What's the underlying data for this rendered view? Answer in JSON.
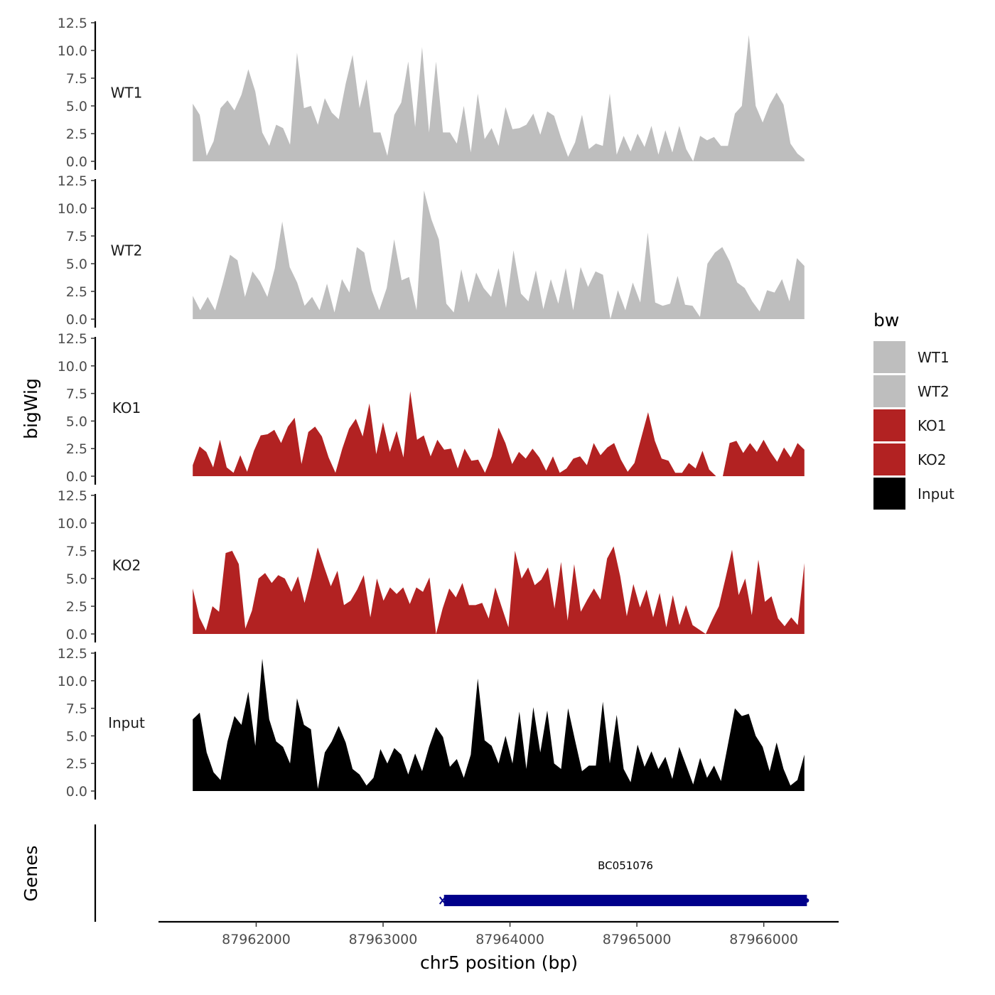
{
  "chart_data": {
    "type": "area",
    "ylabel": "bigWig",
    "xlabel": "chr5 position (bp)",
    "x_range": [
      87961500,
      87966320
    ],
    "xlim": [
      87961230,
      87966590
    ],
    "ylim": [
      0,
      12.5
    ],
    "y_ticks": [
      "0.0",
      "2.5",
      "5.0",
      "7.5",
      "10.0",
      "12.5"
    ],
    "x_ticks": [
      {
        "value": 87962000,
        "label": "87962000"
      },
      {
        "value": 87963000,
        "label": "87963000"
      },
      {
        "value": 87964000,
        "label": "87964000"
      },
      {
        "value": 87965000,
        "label": "87965000"
      },
      {
        "value": 87966000,
        "label": "87966000"
      }
    ],
    "grid": false,
    "legend": {
      "title": "bw",
      "placement": "right",
      "items": [
        {
          "label": "WT1",
          "color": "#bebebe"
        },
        {
          "label": "WT2",
          "color": "#bebebe"
        },
        {
          "label": "KO1",
          "color": "#b22222"
        },
        {
          "label": "KO2",
          "color": "#b22222"
        },
        {
          "label": "Input",
          "color": "#000000"
        }
      ]
    },
    "series": [
      {
        "name": "WT1",
        "color": "#bebebe",
        "values": [
          5.2,
          4.2,
          0.5,
          1.8,
          4.8,
          5.5,
          4.6,
          6.0,
          8.3,
          6.3,
          2.6,
          1.4,
          3.3,
          3.0,
          1.5,
          9.8,
          4.8,
          5.0,
          3.3,
          5.7,
          4.4,
          3.8,
          7.0,
          9.6,
          4.8,
          7.4,
          2.6,
          2.6,
          0.5,
          4.2,
          5.3,
          9.0,
          3.1,
          10.3,
          2.6,
          9.0,
          2.6,
          2.6,
          1.6,
          5.0,
          0.8,
          6.1,
          2.0,
          3.0,
          1.4,
          4.9,
          2.9,
          3.0,
          3.3,
          4.3,
          2.4,
          4.5,
          4.1,
          2.1,
          0.4,
          1.7,
          4.2,
          1.1,
          1.6,
          1.4,
          6.1,
          0.6,
          2.3,
          0.9,
          2.5,
          1.3,
          3.2,
          0.6,
          2.8,
          0.8,
          3.2,
          1.1,
          0.0,
          2.3,
          1.9,
          2.2,
          1.4,
          1.4,
          4.3,
          5.0,
          11.4,
          5.0,
          3.5,
          5.1,
          6.2,
          5.1,
          1.6,
          0.7,
          0.2
        ]
      },
      {
        "name": "WT2",
        "color": "#bebebe",
        "values": [
          2.1,
          0.8,
          2.0,
          0.8,
          3.2,
          5.8,
          5.3,
          2.0,
          4.3,
          3.4,
          2.0,
          4.6,
          8.8,
          4.7,
          3.3,
          1.2,
          2.0,
          0.8,
          3.2,
          0.6,
          3.6,
          2.4,
          6.5,
          6.0,
          2.6,
          0.8,
          2.8,
          7.2,
          3.5,
          3.8,
          0.8,
          11.6,
          9.0,
          7.2,
          1.4,
          0.6,
          4.5,
          1.5,
          4.2,
          2.8,
          2.0,
          4.6,
          1.0,
          6.2,
          2.3,
          1.6,
          4.4,
          0.9,
          3.6,
          1.4,
          4.6,
          0.8,
          4.7,
          2.9,
          4.3,
          4.0,
          0.0,
          2.6,
          0.8,
          3.3,
          1.5,
          7.8,
          1.5,
          1.2,
          1.4,
          3.9,
          1.3,
          1.2,
          0.2,
          5.0,
          6.0,
          6.5,
          5.2,
          3.3,
          2.8,
          1.6,
          0.7,
          2.6,
          2.4,
          3.6,
          1.6,
          5.5,
          4.8
        ]
      },
      {
        "name": "KO1",
        "color": "#b22222",
        "values": [
          1.0,
          2.7,
          2.2,
          0.8,
          3.3,
          0.8,
          0.3,
          1.9,
          0.4,
          2.3,
          3.7,
          3.8,
          4.2,
          3.0,
          4.5,
          5.3,
          1.1,
          4.0,
          4.5,
          3.6,
          1.7,
          0.3,
          2.5,
          4.3,
          5.2,
          3.6,
          6.6,
          2.0,
          4.9,
          2.2,
          4.1,
          1.7,
          7.7,
          3.3,
          3.7,
          1.8,
          3.3,
          2.4,
          2.5,
          0.7,
          2.5,
          1.4,
          1.5,
          0.3,
          1.8,
          4.4,
          3.0,
          1.1,
          2.2,
          1.6,
          2.5,
          1.7,
          0.5,
          1.8,
          0.3,
          0.7,
          1.6,
          1.8,
          1.0,
          3.0,
          1.9,
          2.6,
          3.0,
          1.5,
          0.4,
          1.2,
          3.5,
          5.8,
          3.2,
          1.6,
          1.4,
          0.3,
          0.3,
          1.2,
          0.7,
          2.3,
          0.6,
          0.0,
          0.0,
          3.0,
          3.2,
          2.1,
          3.0,
          2.2,
          3.3,
          2.2,
          1.3,
          2.6,
          1.7,
          3.0,
          2.4
        ]
      },
      {
        "name": "KO2",
        "color": "#b22222",
        "values": [
          4.1,
          1.5,
          0.3,
          2.5,
          2.0,
          7.3,
          7.5,
          6.3,
          0.5,
          2.1,
          5.0,
          5.5,
          4.6,
          5.3,
          5.0,
          3.8,
          5.2,
          2.8,
          5.1,
          7.8,
          6.0,
          4.3,
          5.7,
          2.6,
          3.0,
          4.0,
          5.3,
          1.5,
          5.0,
          3.0,
          4.2,
          3.6,
          4.2,
          2.7,
          4.2,
          3.8,
          5.1,
          0.0,
          2.3,
          4.1,
          3.3,
          4.6,
          2.6,
          2.6,
          2.8,
          1.4,
          4.2,
          2.4,
          0.6,
          7.5,
          5.0,
          6.0,
          4.4,
          4.9,
          6.0,
          2.3,
          6.5,
          1.2,
          6.3,
          2.0,
          3.1,
          4.1,
          3.1,
          6.8,
          7.9,
          5.2,
          1.6,
          4.5,
          2.4,
          4.0,
          1.5,
          3.7,
          0.6,
          3.5,
          0.8,
          2.6,
          0.8,
          0.4,
          0.0,
          1.3,
          2.5,
          5.0,
          7.6,
          3.5,
          5.0,
          1.7,
          6.7,
          2.9,
          3.4,
          1.4,
          0.7,
          1.5,
          0.8,
          6.4
        ]
      },
      {
        "name": "Input",
        "color": "#000000",
        "values": [
          6.5,
          7.1,
          3.5,
          1.7,
          1.0,
          4.5,
          6.8,
          6.0,
          9.0,
          4.1,
          12.0,
          6.5,
          4.5,
          4.0,
          2.5,
          8.4,
          6.0,
          5.6,
          0.2,
          3.5,
          4.5,
          5.9,
          4.4,
          2.0,
          1.5,
          0.5,
          1.2,
          3.8,
          2.5,
          3.9,
          3.3,
          1.5,
          3.4,
          1.8,
          4.0,
          5.8,
          4.9,
          2.2,
          2.9,
          1.2,
          3.3,
          10.2,
          4.6,
          4.1,
          2.5,
          5.0,
          2.5,
          7.2,
          2.0,
          7.6,
          3.5,
          7.3,
          2.5,
          2.0,
          7.5,
          4.6,
          1.8,
          2.3,
          2.3,
          8.1,
          2.5,
          6.9,
          2.0,
          0.8,
          4.2,
          2.2,
          3.6,
          2.0,
          3.1,
          1.1,
          4.0,
          2.3,
          0.6,
          3.0,
          1.2,
          2.3,
          0.9,
          4.2,
          7.5,
          6.8,
          7.0,
          5.0,
          4.0,
          1.8,
          4.4,
          2.0,
          0.5,
          1.0,
          3.3
        ]
      }
    ],
    "gene_track": {
      "ylabel": "Genes",
      "genes": [
        {
          "name": "BC051076",
          "start": 87963480,
          "end": 87966340,
          "color": "#00008b"
        }
      ]
    }
  }
}
